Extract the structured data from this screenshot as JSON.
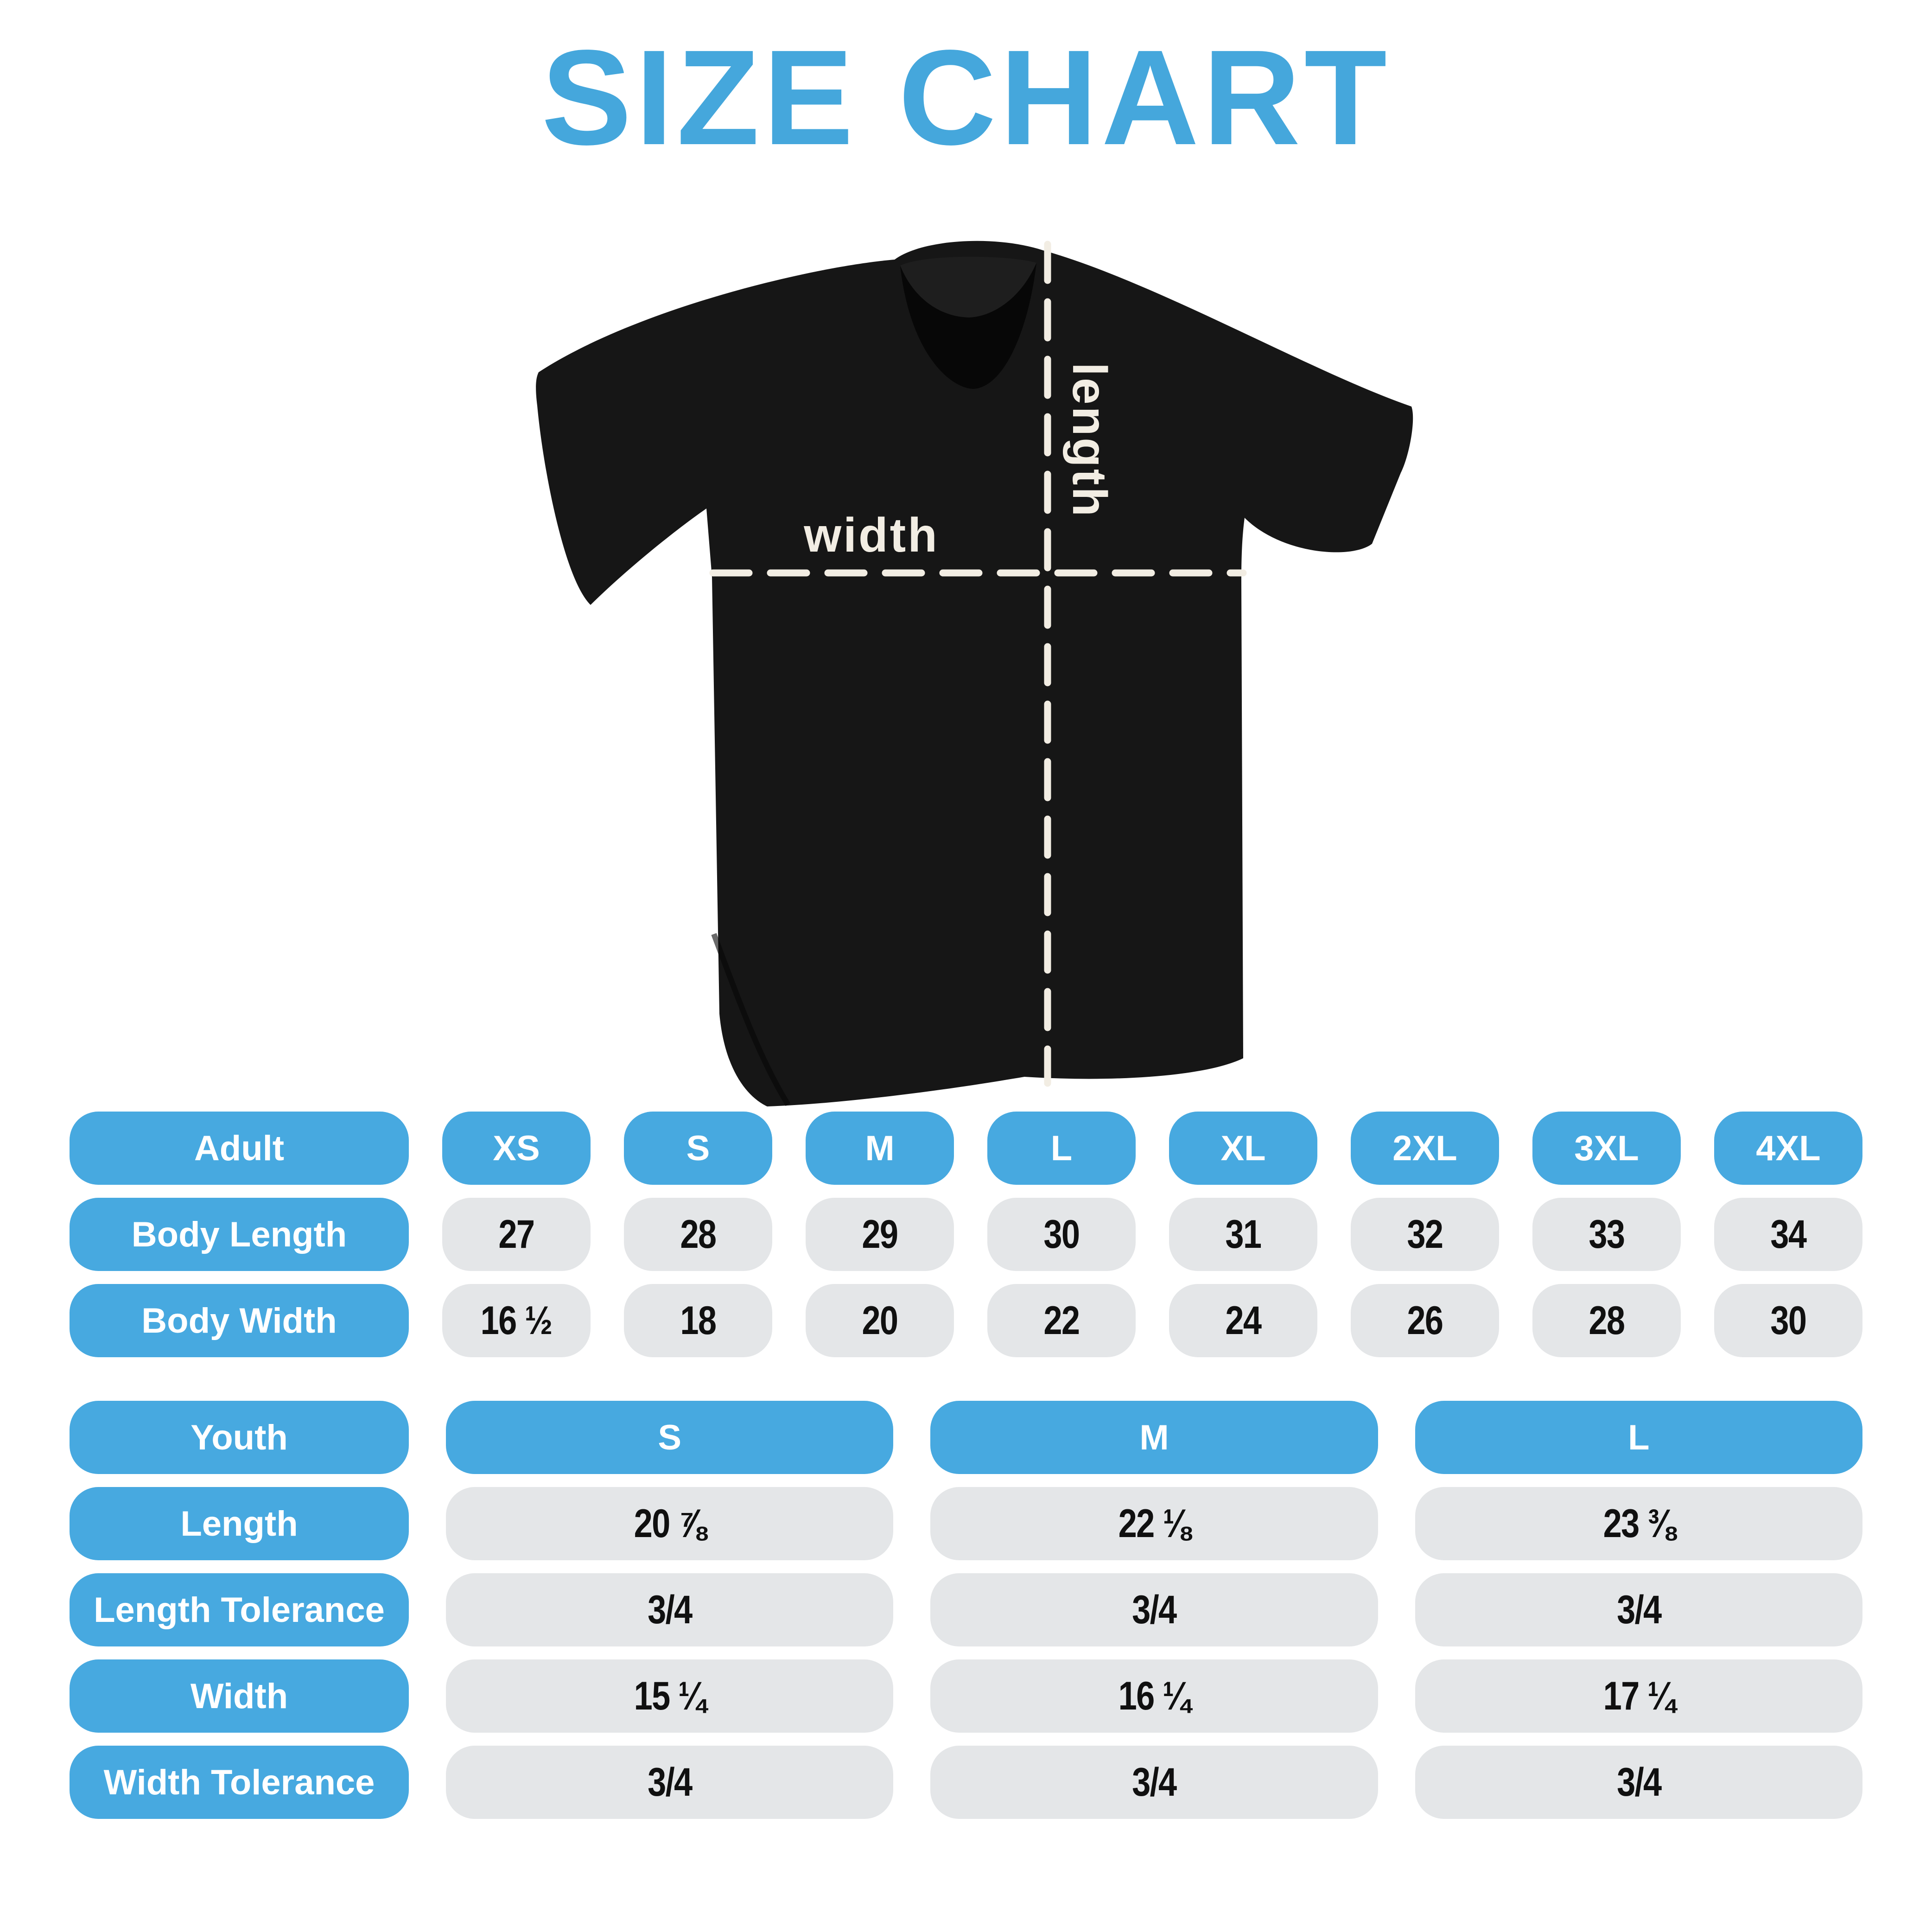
{
  "title": "SIZE CHART",
  "shirt": {
    "width_label": "width",
    "length_label": "length"
  },
  "adult_table": {
    "header_label": "Adult",
    "sizes": [
      "XS",
      "S",
      "M",
      "L",
      "XL",
      "2XL",
      "3XL",
      "4XL"
    ],
    "rows": [
      {
        "label": "Body Length",
        "values": [
          "27",
          "28",
          "29",
          "30",
          "31",
          "32",
          "33",
          "34"
        ]
      },
      {
        "label": "Body Width",
        "values": [
          "16 ½",
          "18",
          "20",
          "22",
          "24",
          "26",
          "28",
          "30"
        ]
      }
    ]
  },
  "youth_table": {
    "header_label": "Youth",
    "sizes": [
      "S",
      "M",
      "L"
    ],
    "rows": [
      {
        "label": "Length",
        "values": [
          "20 ⅞",
          "22 ⅛",
          "23 ⅜"
        ]
      },
      {
        "label": "Length Tolerance",
        "values": [
          "3/4",
          "3/4",
          "3/4"
        ]
      },
      {
        "label": "Width",
        "values": [
          "15 ¼",
          "16 ¼",
          "17 ¼"
        ]
      },
      {
        "label": "Width Tolerance",
        "values": [
          "3/4",
          "3/4",
          "3/4"
        ]
      }
    ]
  },
  "colors": {
    "accent_blue": "#47A9E0",
    "title_blue": "#45A7DC",
    "pill_gray": "#E4E6E8",
    "shirt_black": "#161616",
    "dash_cream": "#F2EDE3",
    "value_black": "#101010"
  },
  "chart_data": [
    {
      "type": "table",
      "title": "Adult sizes (inches)",
      "columns": [
        "Adult",
        "XS",
        "S",
        "M",
        "L",
        "XL",
        "2XL",
        "3XL",
        "4XL"
      ],
      "rows": [
        [
          "Body Length",
          27,
          28,
          29,
          30,
          31,
          32,
          33,
          34
        ],
        [
          "Body Width",
          16.5,
          18,
          20,
          22,
          24,
          26,
          28,
          30
        ]
      ]
    },
    {
      "type": "table",
      "title": "Youth sizes (inches)",
      "columns": [
        "Youth",
        "S",
        "M",
        "L"
      ],
      "rows": [
        [
          "Length",
          20.875,
          22.125,
          23.375
        ],
        [
          "Length Tolerance",
          0.75,
          0.75,
          0.75
        ],
        [
          "Width",
          15.25,
          16.25,
          17.25
        ],
        [
          "Width Tolerance",
          0.75,
          0.75,
          0.75
        ]
      ]
    }
  ]
}
